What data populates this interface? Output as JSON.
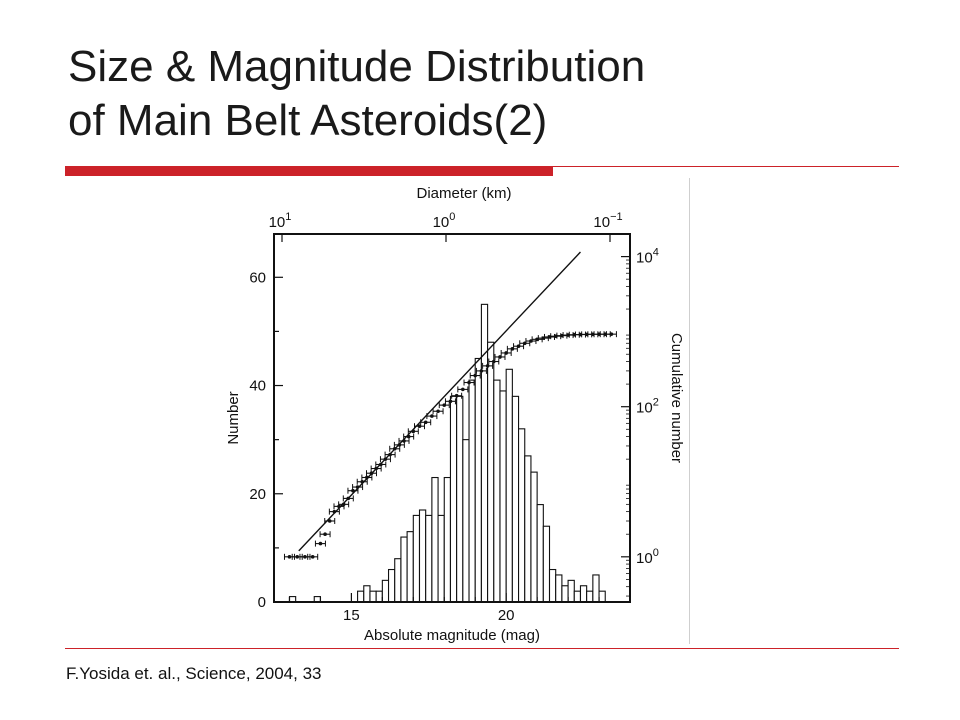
{
  "slide": {
    "title_line1": "Size & Magnitude Distribution",
    "title_line2": "of Main Belt Asteroids(2)",
    "citation": "F.Yosida et. al., Science, 2004, 33",
    "accent_color": "#cc2229"
  },
  "chart_data": {
    "type": "bar",
    "xlabel": "Absolute magnitude (mag)",
    "ylabel": "Number",
    "x2label": "Diameter (km)",
    "y2label": "Cumulative number",
    "xlim": [
      12.5,
      24.0
    ],
    "ylim": [
      0,
      68
    ],
    "x_ticks": [
      "15",
      "20"
    ],
    "y_ticks": [
      "0",
      "20",
      "40",
      "60"
    ],
    "top_ticks": [
      {
        "base": "10",
        "exp": "1"
      },
      {
        "base": "10",
        "exp": "0"
      },
      {
        "base": "10",
        "exp": "−1"
      }
    ],
    "right_ticks": [
      {
        "base": "10",
        "exp": "0"
      },
      {
        "base": "10",
        "exp": "2"
      },
      {
        "base": "10",
        "exp": "4"
      }
    ],
    "y2_scale": "log",
    "y2lim": [
      0.25,
      20000
    ],
    "histogram": {
      "bin_width": 0.2,
      "centers": [
        13.1,
        13.3,
        13.5,
        13.7,
        13.9,
        14.1,
        14.3,
        14.5,
        14.7,
        14.9,
        15.1,
        15.3,
        15.5,
        15.7,
        15.9,
        16.1,
        16.3,
        16.5,
        16.7,
        16.9,
        17.1,
        17.3,
        17.5,
        17.7,
        17.9,
        18.1,
        18.3,
        18.5,
        18.7,
        18.9,
        19.1,
        19.3,
        19.5,
        19.7,
        19.9,
        20.1,
        20.3,
        20.5,
        20.7,
        20.9,
        21.1,
        21.3,
        21.5,
        21.7,
        21.9,
        22.1,
        22.3,
        22.5,
        22.7,
        22.9,
        23.1
      ],
      "values": [
        1,
        0,
        0,
        0,
        1,
        0,
        0,
        0,
        0,
        0,
        0,
        2,
        3,
        2,
        2,
        4,
        6,
        8,
        12,
        13,
        16,
        17,
        16,
        23,
        16,
        23,
        38,
        38,
        30,
        41,
        45,
        55,
        48,
        41,
        39,
        43,
        38,
        32,
        27,
        24,
        18,
        14,
        6,
        5,
        3,
        4,
        2,
        3,
        2,
        5,
        2
      ]
    },
    "cumulative": {
      "x": [
        13.0,
        13.25,
        13.5,
        13.75,
        14.0,
        14.15,
        14.3,
        14.45,
        14.6,
        14.75,
        14.9,
        15.05,
        15.2,
        15.35,
        15.5,
        15.65,
        15.8,
        15.95,
        16.1,
        16.25,
        16.4,
        16.55,
        16.7,
        16.85,
        17.0,
        17.2,
        17.4,
        17.6,
        17.8,
        18.0,
        18.2,
        18.4,
        18.6,
        18.8,
        19.0,
        19.2,
        19.4,
        19.6,
        19.8,
        20.0,
        20.2,
        20.4,
        20.6,
        20.8,
        21.0,
        21.2,
        21.4,
        21.6,
        21.8,
        22.0,
        22.2,
        22.4,
        22.6,
        22.8,
        23.0,
        23.2,
        23.4
      ],
      "y": [
        1,
        1,
        1,
        1,
        1.5,
        2,
        3,
        4,
        4.7,
        5,
        6,
        7.6,
        8.5,
        10,
        11.4,
        13,
        15,
        17,
        20,
        23,
        27.5,
        31,
        35,
        40,
        47,
        55,
        62,
        75,
        87,
        105,
        118,
        140,
        170,
        210,
        260,
        300,
        350,
        400,
        460,
        520,
        590,
        640,
        700,
        750,
        790,
        820,
        850,
        870,
        885,
        900,
        910,
        915,
        920,
        922,
        924,
        925,
        926
      ]
    },
    "fit_line": {
      "x": [
        13.3,
        22.4
      ],
      "y": [
        1.2,
        11500
      ]
    }
  }
}
